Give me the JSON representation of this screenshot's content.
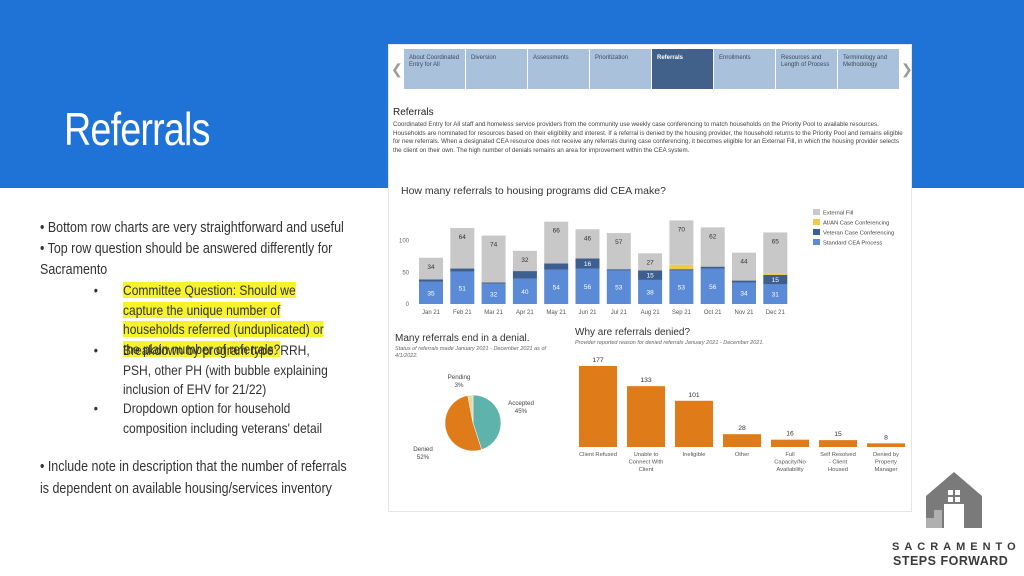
{
  "slide": {
    "title": "Referrals",
    "notes": [
      "• Bottom row charts are very straightforward and useful",
      "• Top row question should be answered differently for",
      "Sacramento"
    ],
    "sub_items": [
      {
        "bullet": "•",
        "text": "Committee Question: Should we capture the unique number of households referred (unduplicated) or the plain number of referrals?",
        "highlight": true
      },
      {
        "bullet": "•",
        "text": "Breakdown by program type: RRH, PSH, other PH (with bubble explaining inclusion of EHV for 21/22)",
        "highlight": false
      },
      {
        "bullet": "•",
        "text": "Dropdown option for household composition including veterans' detail",
        "highlight": false
      }
    ],
    "note_bottom": [
      "• Include note in description that the number of referrals",
      "is dependent on available housing/services inventory"
    ]
  },
  "dashboard": {
    "tabs": [
      {
        "label": "About Coordinated Entry for All",
        "active": false
      },
      {
        "label": "Diversion",
        "active": false
      },
      {
        "label": "Assessments",
        "active": false
      },
      {
        "label": "Prioritization",
        "active": false
      },
      {
        "label": "Referrals",
        "active": true
      },
      {
        "label": "Enrollments",
        "active": false
      },
      {
        "label": "Resources and Length of Process",
        "active": false
      },
      {
        "label": "Terminology and Methodology",
        "active": false
      }
    ],
    "heading": "Referrals",
    "description": "Coordinated Entry for All staff and homeless service providers from the community use weekly case conferencing to match households on the Priority Pool to available resources. Households are nominated for resources based on their eligibility and interest. If a referral is denied by the housing provider, the household returns to the Priority Pool and remains eligible for new referrals. When a designated CEA resource does not receive any referrals during case conferencing, it becomes eligible for an External Fill, in which the housing provider selects the client on their own. The high number of denials remains an area for improvement within the CEA system.",
    "pie_title": "Many referrals end in a denial.",
    "pie_subtitle": "Status of referrals made January 2021 - December 2021 as of 4/1/2022.",
    "reasons_title": "Why are referrals denied?",
    "reasons_subtitle": "Provider reported reason for denied referrals January 2021 - December 2021."
  },
  "colors": {
    "banner": "#1f73d6",
    "external": "#c8c8c8",
    "aian": "#f2c94c",
    "veteran": "#3d5f8f",
    "standard": "#5b8bd6",
    "orange": "#e07b1a",
    "teal": "#5fb3ad"
  },
  "chart_data": [
    {
      "type": "bar",
      "title": "How many referrals to housing programs did CEA make?",
      "categories": [
        "Jan 21",
        "Feb 21",
        "Mar 21",
        "Apr 21",
        "May 21",
        "Jun 21",
        "Jul 21",
        "Aug 21",
        "Sep 21",
        "Oct 21",
        "Nov 21",
        "Dec 21"
      ],
      "series": [
        {
          "name": "Standard CEA Process",
          "values": [
            35,
            51,
            32,
            40,
            54,
            56,
            53,
            38,
            53,
            56,
            34,
            31
          ]
        },
        {
          "name": "Veteran Case Conferencing",
          "values": [
            4,
            5,
            2,
            12,
            10,
            16,
            2,
            15,
            2,
            3,
            3,
            15
          ]
        },
        {
          "name": "AI/AN Case Conferencing",
          "values": [
            0,
            0,
            0,
            0,
            0,
            0,
            0,
            0,
            7,
            0,
            0,
            2
          ]
        },
        {
          "name": "External Fill",
          "values": [
            34,
            64,
            74,
            32,
            66,
            46,
            57,
            27,
            70,
            62,
            44,
            65
          ]
        }
      ],
      "segment_labels": [
        [
          "35",
          "",
          "",
          "34"
        ],
        [
          "51",
          "",
          "",
          "64"
        ],
        [
          "32",
          "",
          "",
          "74"
        ],
        [
          "40",
          "",
          "",
          "32"
        ],
        [
          "54",
          "",
          "",
          "66"
        ],
        [
          "56",
          "16",
          "",
          "46"
        ],
        [
          "53",
          "",
          "",
          "57"
        ],
        [
          "38",
          "15",
          "",
          "27"
        ],
        [
          "53",
          "",
          "",
          "70"
        ],
        [
          "56",
          "",
          "",
          "62"
        ],
        [
          "34",
          "",
          "",
          "44"
        ],
        [
          "31",
          "15",
          "",
          "65"
        ]
      ],
      "legend": [
        "External Fill",
        "AI/AN Case Conferencing",
        "Veteran Case Conferencing",
        "Standard CEA Process"
      ],
      "yticks": [
        "0",
        "50",
        "100"
      ],
      "ylim": [
        0,
        150
      ]
    },
    {
      "type": "pie",
      "slices": [
        {
          "label": "Accepted",
          "pct": "45%",
          "value": 45
        },
        {
          "label": "Denied",
          "pct": "52%",
          "value": 52
        },
        {
          "label": "Pending",
          "pct": "3%",
          "value": 3
        }
      ]
    },
    {
      "type": "bar",
      "categories": [
        "Client Refused",
        "Unable to Connect With Client",
        "Ineligible",
        "Other",
        "Full Capacity/No Availability",
        "Self Resolved - Client Housed",
        "Denied by Property Manager"
      ],
      "values": [
        177,
        133,
        101,
        28,
        16,
        15,
        8
      ],
      "ylim": [
        0,
        177
      ]
    }
  ],
  "brand": {
    "line1": "SACRAMENTO",
    "line2": "STEPS FORWARD"
  }
}
